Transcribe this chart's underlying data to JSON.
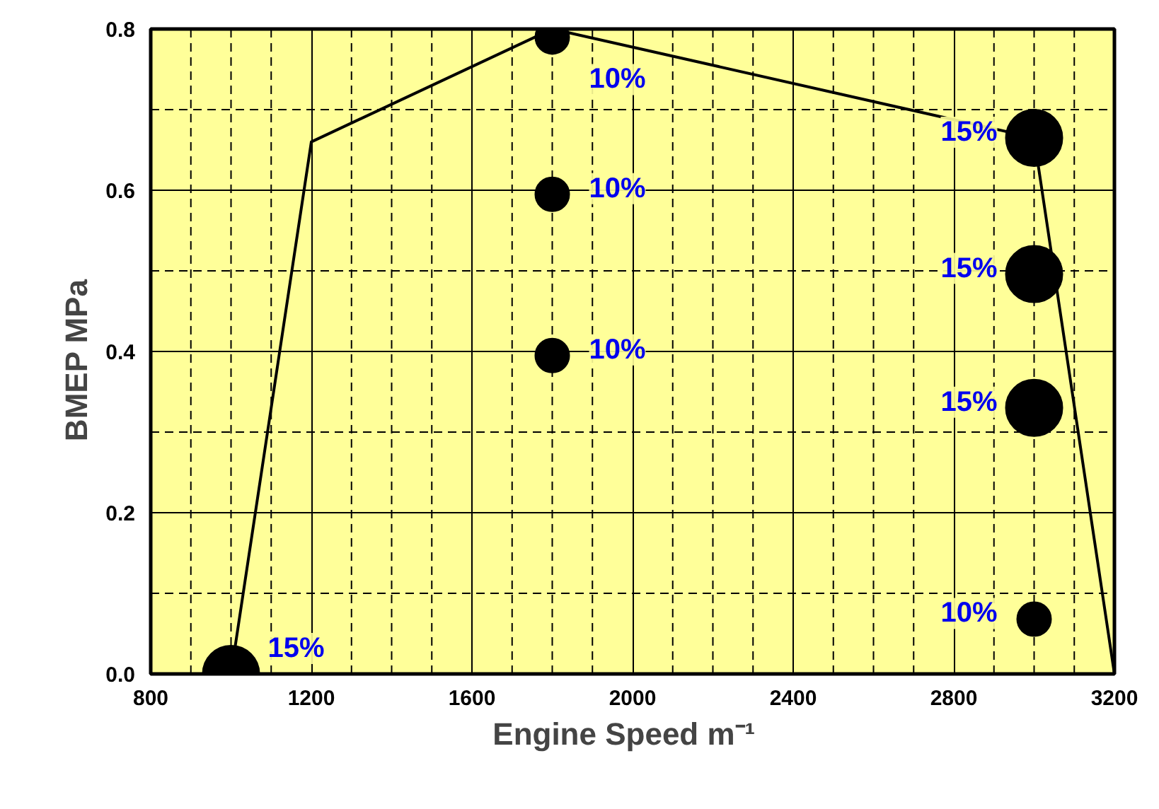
{
  "chart_data": {
    "type": "bubble",
    "xlabel": "Engine Speed   m⁻¹",
    "ylabel": "BMEP   MPa",
    "xlim": [
      800,
      3200
    ],
    "xticks": [
      800,
      1200,
      1600,
      2000,
      2400,
      2800,
      3200
    ],
    "ylim": [
      0,
      0.8
    ],
    "yticks": [
      {
        "value": 0,
        "label": "0.0"
      },
      {
        "value": 0.2,
        "label": "0.2"
      },
      {
        "value": 0.4,
        "label": "0.4"
      },
      {
        "value": 0.6,
        "label": "0.6"
      },
      {
        "value": 0.8,
        "label": "0.8"
      }
    ],
    "grid": true,
    "series": [
      {
        "type": "line",
        "color": "#000000",
        "marker": "none",
        "x": [
          1000,
          1200,
          1800,
          3000,
          3200
        ],
        "values": [
          0,
          0.66,
          0.8,
          0.665,
          0
        ]
      },
      {
        "color": "#000000",
        "x": [
          1000,
          1800,
          1800,
          1800,
          3000,
          3000,
          3000,
          3000
        ],
        "values": [
          0,
          0.79,
          0.595,
          0.395,
          0.665,
          0.496,
          0.33,
          0.068
        ],
        "sizes": [
          1,
          0.36,
          0.36,
          0.36,
          1,
          1,
          1,
          0.36
        ]
      }
    ],
    "annotations": [
      {
        "text": "15%",
        "x": 1000,
        "y": 0
      },
      {
        "text": "10%",
        "x": 1800,
        "y": 0.79
      },
      {
        "text": "10%",
        "x": 1800,
        "y": 0.595
      },
      {
        "text": "10%",
        "x": 1800,
        "y": 0.395
      },
      {
        "text": "15%",
        "x": 3000,
        "y": 0.665
      },
      {
        "text": "15%",
        "x": 3000,
        "y": 0.496
      },
      {
        "text": "15%",
        "x": 3000,
        "y": 0.33
      },
      {
        "text": "10%",
        "x": 3000,
        "y": 0.068
      }
    ]
  }
}
